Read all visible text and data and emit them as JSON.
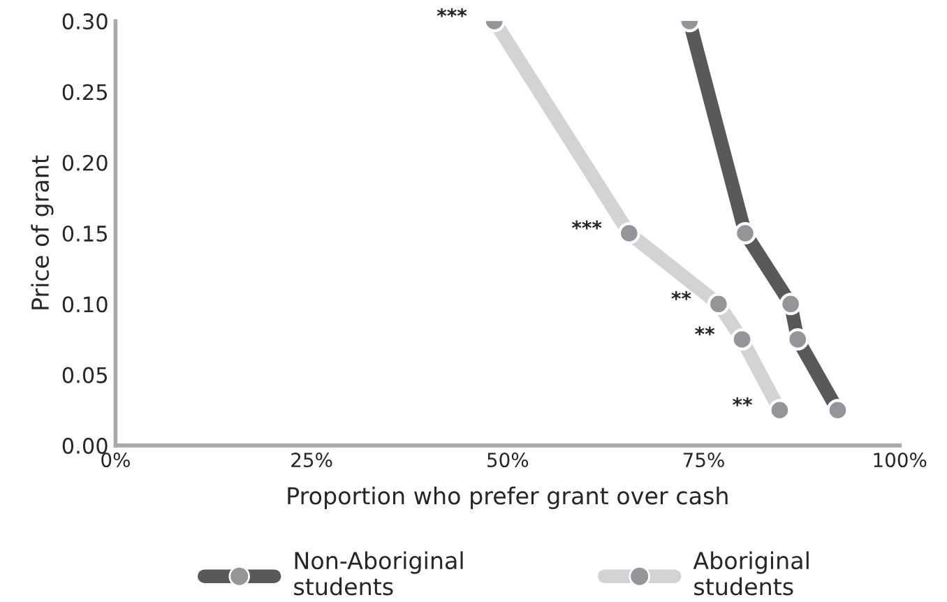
{
  "chart_data": {
    "type": "line",
    "xlabel": "Proportion who prefer grant over cash",
    "ylabel": "Price of grant",
    "series": [
      {
        "name": "Non-Aboriginal\nstudents",
        "color": "#58595b",
        "x": [
          73.2,
          80.3,
          86.1,
          87.0,
          92.1
        ],
        "values": [
          0.3,
          0.15,
          0.1,
          0.075,
          0.025
        ]
      },
      {
        "name": "Aboriginal\nstudents",
        "color": "#d1d3d4",
        "x": [
          48.3,
          65.5,
          76.9,
          79.9,
          84.7
        ],
        "values": [
          0.3,
          0.15,
          0.1,
          0.075,
          0.025
        ]
      }
    ],
    "annotations": [
      {
        "text": "***",
        "x": 48.3,
        "y": 0.3
      },
      {
        "text": "***",
        "x": 65.5,
        "y": 0.15
      },
      {
        "text": "**",
        "x": 76.9,
        "y": 0.1
      },
      {
        "text": "**",
        "x": 79.9,
        "y": 0.075
      },
      {
        "text": "**",
        "x": 84.7,
        "y": 0.025
      }
    ],
    "xlim": [
      0,
      100
    ],
    "xticks": [
      {
        "value": 0,
        "label": "0%"
      },
      {
        "value": 25,
        "label": "25%"
      },
      {
        "value": 50,
        "label": "50%"
      },
      {
        "value": 75,
        "label": "75%"
      },
      {
        "value": 100,
        "label": "100%"
      }
    ],
    "ylim": [
      0,
      0.3
    ],
    "yticks": [
      {
        "value": 0,
        "label": "0.00"
      },
      {
        "value": 0.05,
        "label": "0.05"
      },
      {
        "value": 0.1,
        "label": "0.10"
      },
      {
        "value": 0.15,
        "label": "0.15"
      },
      {
        "value": 0.2,
        "label": "0.20"
      },
      {
        "value": 0.25,
        "label": "0.25"
      },
      {
        "value": 0.3,
        "label": "0.30"
      }
    ],
    "grid": false,
    "legend": "bottom",
    "marker": "circle",
    "line_style": "solid"
  }
}
